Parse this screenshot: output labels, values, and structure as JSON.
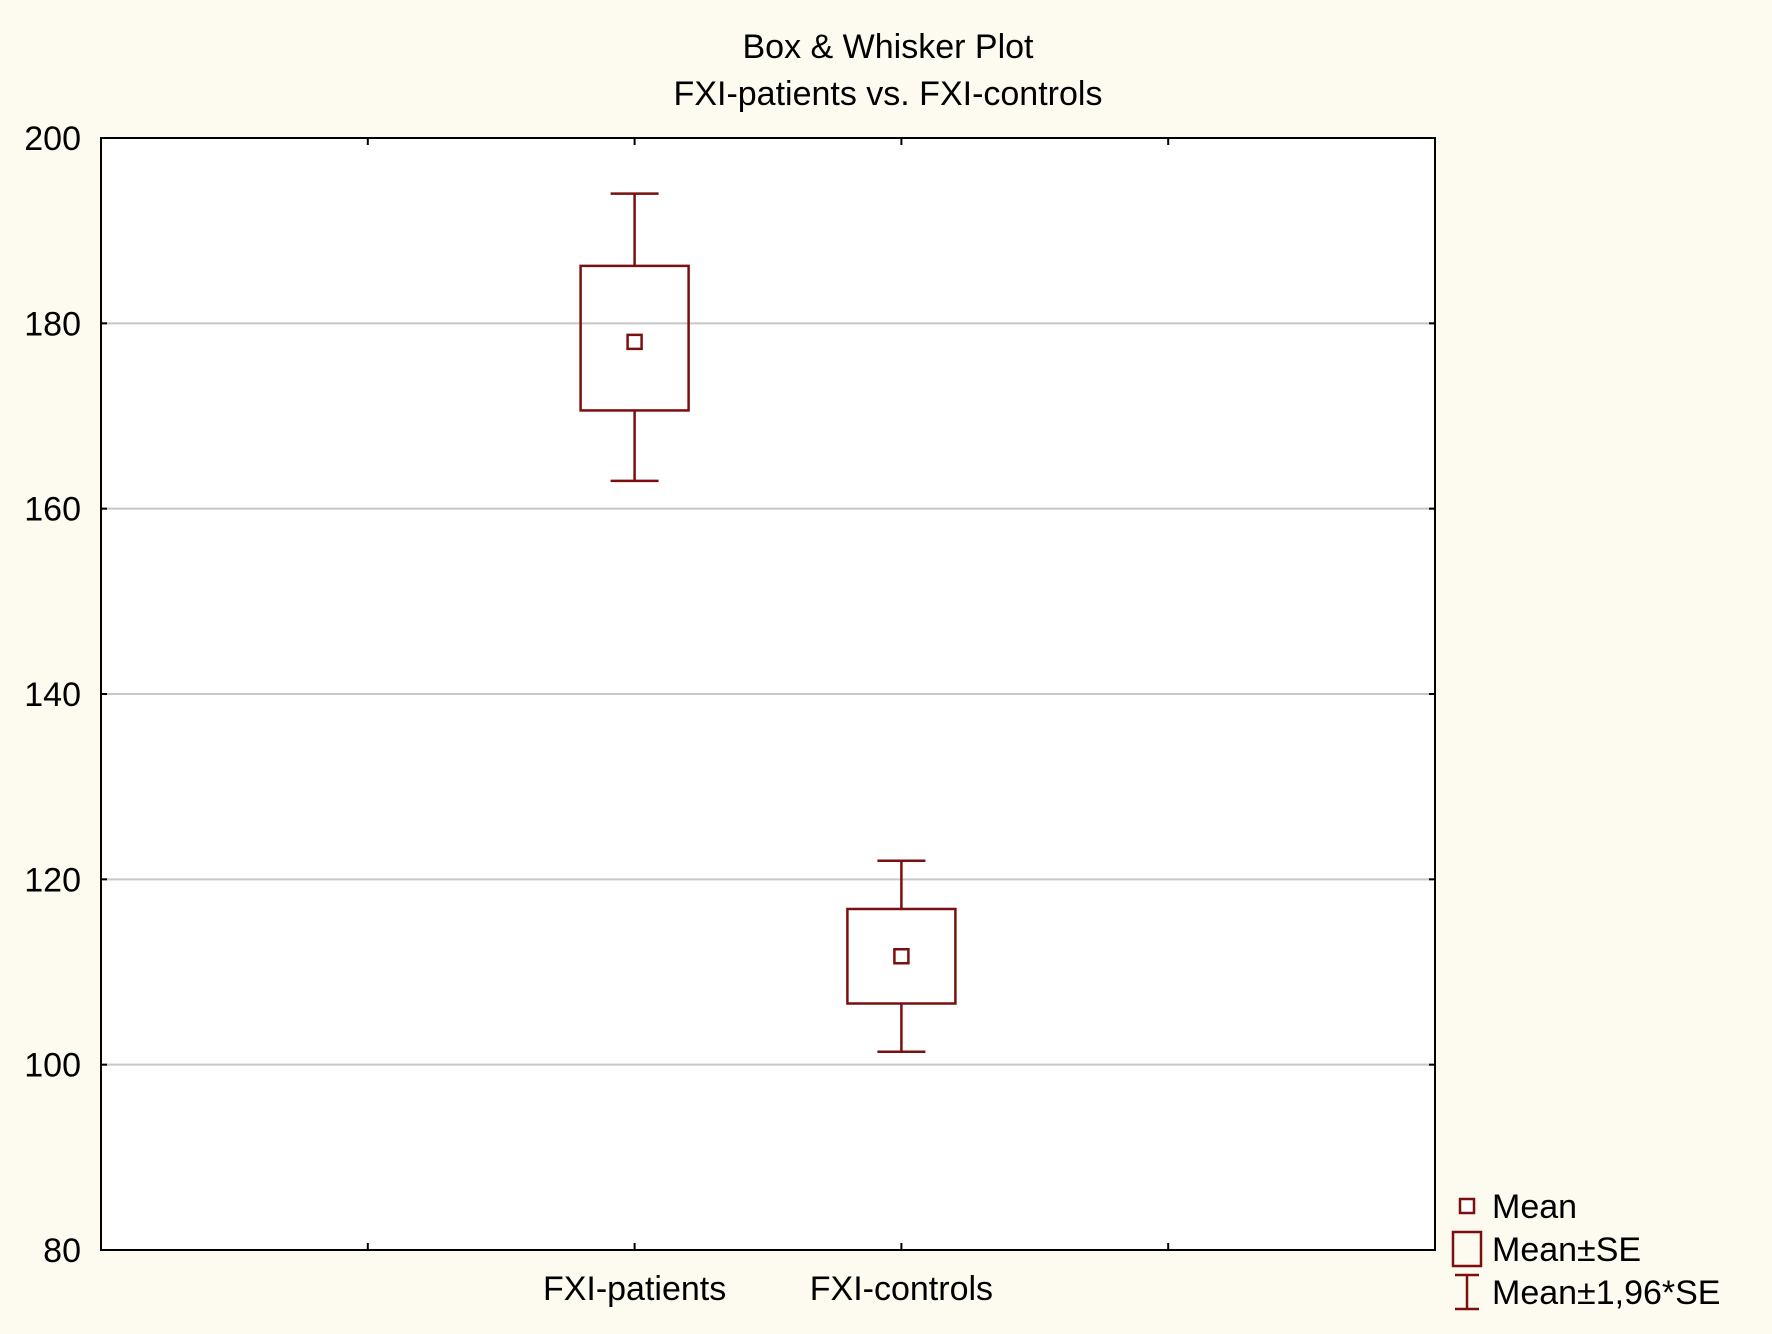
{
  "chart_data": {
    "type": "box",
    "title": "Box & Whisker Plot",
    "subtitle": "FXI-patients vs. FXI-controls",
    "xlabel": "",
    "ylabel": "",
    "ylim": [
      80,
      200
    ],
    "yticks": [
      80,
      100,
      120,
      140,
      160,
      180,
      200
    ],
    "categories": [
      "FXI-patients",
      "FXI-controls"
    ],
    "boxes": [
      {
        "category": "FXI-patients",
        "mean": 178,
        "se_low": 170.6,
        "se_high": 186.2,
        "ci_low": 163,
        "ci_high": 194
      },
      {
        "category": "FXI-controls",
        "mean": 111.7,
        "se_low": 106.6,
        "se_high": 116.8,
        "ci_low": 101.4,
        "ci_high": 122
      }
    ],
    "legend": {
      "position": "bottom-right",
      "items": [
        {
          "symbol": "mean-marker",
          "label": "Mean"
        },
        {
          "symbol": "se-box",
          "label": "Mean±SE"
        },
        {
          "symbol": "ci-whisker",
          "label": "Mean±1,96*SE"
        }
      ]
    },
    "grid": true,
    "colors": {
      "background": "#fdfbef",
      "plot_background": "#ffffff",
      "series": "#7b0f0f",
      "grid": "#c8c8c8",
      "axis": "#000000"
    }
  }
}
